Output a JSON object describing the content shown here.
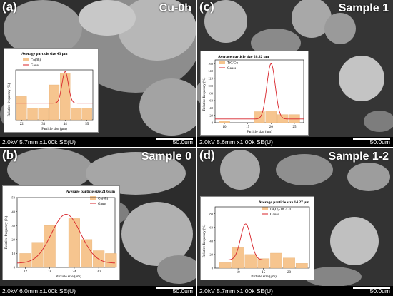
{
  "panels": [
    {
      "letter": "(a)",
      "title": "Cu-0h",
      "microscope": "2.0kV 5.7mm x1.00k SE(U)",
      "scale": "50.0um",
      "inset": {
        "title": "Average particle size 43 μm",
        "legend": [
          "Cu(0h)",
          "Gauss"
        ],
        "xlabel": "Particle size (μm)",
        "ylabel": "Relative frequency (%)"
      }
    },
    {
      "letter": "(c)",
      "title": "Sample 1",
      "microscope": "2.0kV 5.6mm x1.00k SE(U)",
      "scale": "50.0um",
      "inset": {
        "title": "Average particle size 20.32 μm",
        "legend": [
          "TiC/Cu",
          "Gauss"
        ],
        "xlabel": "Particle size (μm)",
        "ylabel": "Relative frequency (%)"
      }
    },
    {
      "letter": "(b)",
      "title": "Sample 0",
      "microscope": "2.0kV 6.0mm x1.00k SE(U)",
      "scale": "50.0um",
      "inset": {
        "title": "Average particle size 21.6 μm",
        "legend": [
          "Cu(6h)",
          "Gauss"
        ],
        "xlabel": "Particle size (μm)",
        "ylabel": "Relative frequency (%)"
      }
    },
    {
      "letter": "(d)",
      "title": "Sample 1-2",
      "microscope": "2.0kV 5.7mm x1.00k SE(U)",
      "scale": "50.0um",
      "inset": {
        "title": "Average particle size 14.27 μm",
        "legend": [
          "La₂O₃-TiC/Cu",
          "Gauss"
        ],
        "xlabel": "Particle size (μm)",
        "ylabel": "Relative frequency (%)"
      }
    }
  ],
  "colors": {
    "bar": "#f6c58f",
    "curve": "#d8232a",
    "sem_dark": "#3a3a3a",
    "sem_light": "#bdbdbd"
  },
  "chart_data": [
    {
      "type": "bar",
      "x": [
        22,
        27.5,
        33,
        38.5,
        44,
        49.5,
        55
      ],
      "values": [
        14,
        7,
        7,
        21,
        28,
        7,
        7
      ],
      "xticks": [
        22,
        33,
        44,
        55
      ],
      "xlim": [
        19,
        58
      ],
      "ylim": [
        0,
        30
      ],
      "yticks": [],
      "gauss": {
        "center": 44,
        "sigma": 1.6,
        "baseline": 10,
        "peak": 29
      }
    },
    {
      "type": "bar",
      "x": [
        10,
        12.5,
        15,
        17.5,
        20,
        22.5,
        25
      ],
      "values": [
        5,
        0,
        0,
        30,
        32,
        22,
        22
      ],
      "xticks": [
        10,
        15,
        20,
        25
      ],
      "xlim": [
        8,
        27
      ],
      "ylim": [
        0,
        170
      ],
      "yticks": [
        0,
        20,
        40,
        60,
        80,
        100,
        120,
        140,
        160
      ],
      "gauss": {
        "center": 20,
        "sigma": 0.9,
        "baseline": 10,
        "peak": 160
      }
    },
    {
      "type": "bar",
      "x": [
        12,
        15,
        18,
        21,
        24,
        27,
        30,
        33
      ],
      "values": [
        10,
        18,
        30,
        0,
        35,
        20,
        12,
        10
      ],
      "xticks": [
        12,
        18,
        24,
        30
      ],
      "xlim": [
        10,
        34
      ],
      "ylim": [
        0,
        50
      ],
      "yticks": [
        0,
        10,
        20,
        30,
        40,
        50
      ],
      "gauss": {
        "center": 22,
        "sigma": 3.6,
        "baseline": 3,
        "peak": 38
      }
    },
    {
      "type": "bar",
      "x": [
        7.5,
        10,
        12.5,
        15,
        17.5,
        20,
        22.5
      ],
      "values": [
        8,
        30,
        20,
        14,
        22,
        15,
        7
      ],
      "xticks": [
        10,
        15,
        20
      ],
      "xlim": [
        5.5,
        24
      ],
      "ylim": [
        0,
        90
      ],
      "yticks": [
        0,
        20,
        40,
        60,
        80
      ],
      "gauss": {
        "center": 11.5,
        "sigma": 1.0,
        "baseline": 12,
        "peak": 65
      }
    }
  ]
}
